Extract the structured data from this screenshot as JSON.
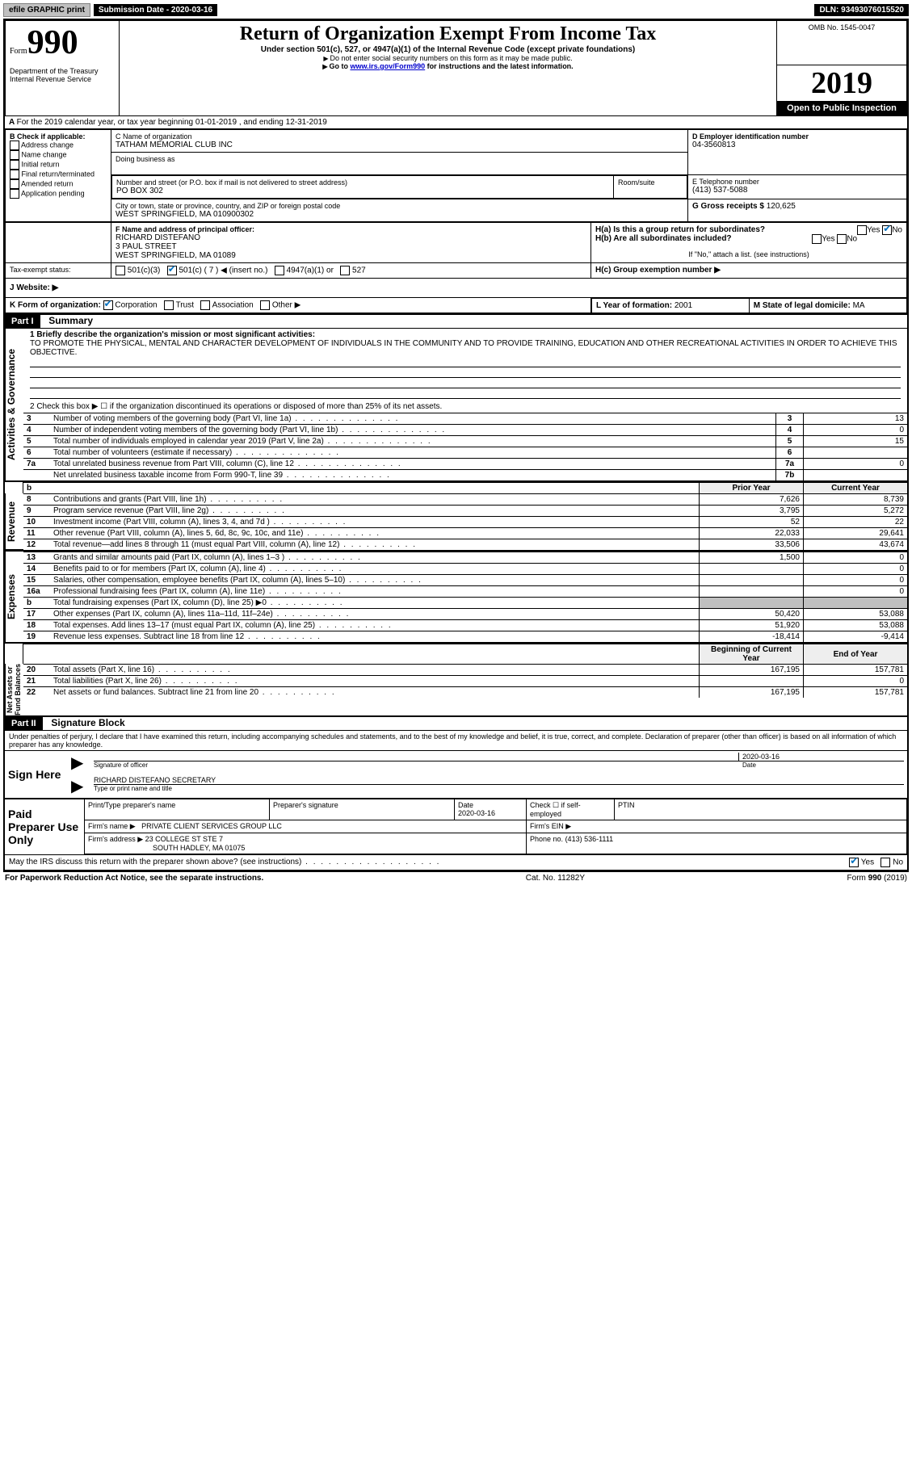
{
  "topbar": {
    "efile": "efile GRAPHIC print",
    "submission_label": "Submission Date - 2020-03-16",
    "dln": "DLN: 93493076015520"
  },
  "header": {
    "form_prefix": "Form",
    "form_number": "990",
    "dept": "Department of the Treasury\nInternal Revenue Service",
    "title": "Return of Organization Exempt From Income Tax",
    "subtitle": "Under section 501(c), 527, or 4947(a)(1) of the Internal Revenue Code (except private foundations)",
    "note1": "Do not enter social security numbers on this form as it may be made public.",
    "note2_prefix": "Go to ",
    "note2_link": "www.irs.gov/Form990",
    "note2_suffix": " for instructions and the latest information.",
    "omb": "OMB No. 1545-0047",
    "year": "2019",
    "open": "Open to Public Inspection"
  },
  "lineA": "For the 2019 calendar year, or tax year beginning 01-01-2019    , and ending 12-31-2019",
  "boxB": {
    "label": "B Check if applicable:",
    "items": [
      "Address change",
      "Name change",
      "Initial return",
      "Final return/terminated",
      "Amended return",
      "Application pending"
    ]
  },
  "boxC": {
    "label": "C Name of organization",
    "name": "TATHAM MEMORIAL CLUB INC",
    "dba_label": "Doing business as",
    "addr_label": "Number and street (or P.O. box if mail is not delivered to street address)",
    "room_label": "Room/suite",
    "addr": "PO BOX 302",
    "city_label": "City or town, state or province, country, and ZIP or foreign postal code",
    "city": "WEST SPRINGFIELD, MA  010900302"
  },
  "boxD": {
    "label": "D Employer identification number",
    "value": "04-3560813"
  },
  "boxE": {
    "label": "E Telephone number",
    "value": "(413) 537-5088"
  },
  "boxG": {
    "label": "G Gross receipts $",
    "value": "120,625"
  },
  "boxF": {
    "label": "F  Name and address of principal officer:",
    "name": "RICHARD DISTEFANO",
    "addr1": "3 PAUL STREET",
    "addr2": "WEST SPRINGFIELD, MA  01089"
  },
  "boxH": {
    "a": "H(a)  Is this a group return for subordinates?",
    "b": "H(b)  Are all subordinates included?",
    "b_note": "If \"No,\" attach a list. (see instructions)",
    "c": "H(c)  Group exemption number ▶"
  },
  "taxexempt": {
    "label": "Tax-exempt status:",
    "c3": "501(c)(3)",
    "c": "501(c) ( 7 ) ◀ (insert no.)",
    "a1": "4947(a)(1) or",
    "527": "527"
  },
  "boxJ": {
    "label": "J   Website: ▶"
  },
  "boxK": {
    "label": "K Form of organization:",
    "corp": "Corporation",
    "trust": "Trust",
    "assoc": "Association",
    "other": "Other ▶"
  },
  "boxL": {
    "label": "L Year of formation:",
    "value": "2001"
  },
  "boxM": {
    "label": "M State of legal domicile:",
    "value": "MA"
  },
  "part1": {
    "title": "Part I",
    "heading": "Summary",
    "line1_label": "1   Briefly describe the organization's mission or most significant activities:",
    "line1_text": "TO PROMOTE THE PHYSICAL, MENTAL AND CHARACTER DEVELOPMENT OF INDIVIDUALS IN THE COMMUNITY AND TO PROVIDE TRAINING, EDUCATION AND OTHER RECREATIONAL ACTIVITIES IN ORDER TO ACHIEVE THIS OBJECTIVE.",
    "line2": "2   Check this box ▶ ☐  if the organization discontinued its operations or disposed of more than 25% of its net assets.",
    "rows_gov": [
      {
        "n": "3",
        "t": "Number of voting members of the governing body (Part VI, line 1a)",
        "box": "3",
        "v": "13"
      },
      {
        "n": "4",
        "t": "Number of independent voting members of the governing body (Part VI, line 1b)",
        "box": "4",
        "v": "0"
      },
      {
        "n": "5",
        "t": "Total number of individuals employed in calendar year 2019 (Part V, line 2a)",
        "box": "5",
        "v": "15"
      },
      {
        "n": "6",
        "t": "Total number of volunteers (estimate if necessary)",
        "box": "6",
        "v": ""
      },
      {
        "n": "7a",
        "t": "Total unrelated business revenue from Part VIII, column (C), line 12",
        "box": "7a",
        "v": "0"
      },
      {
        "n": "",
        "t": "Net unrelated business taxable income from Form 990-T, line 39",
        "box": "7b",
        "v": ""
      }
    ],
    "col_headers": {
      "prior": "Prior Year",
      "current": "Current Year"
    },
    "rows_rev": [
      {
        "n": "8",
        "t": "Contributions and grants (Part VIII, line 1h)",
        "p": "7,626",
        "c": "8,739"
      },
      {
        "n": "9",
        "t": "Program service revenue (Part VIII, line 2g)",
        "p": "3,795",
        "c": "5,272"
      },
      {
        "n": "10",
        "t": "Investment income (Part VIII, column (A), lines 3, 4, and 7d )",
        "p": "52",
        "c": "22"
      },
      {
        "n": "11",
        "t": "Other revenue (Part VIII, column (A), lines 5, 6d, 8c, 9c, 10c, and 11e)",
        "p": "22,033",
        "c": "29,641"
      },
      {
        "n": "12",
        "t": "Total revenue—add lines 8 through 11 (must equal Part VIII, column (A), line 12)",
        "p": "33,506",
        "c": "43,674"
      }
    ],
    "rows_exp": [
      {
        "n": "13",
        "t": "Grants and similar amounts paid (Part IX, column (A), lines 1–3 )",
        "p": "1,500",
        "c": "0"
      },
      {
        "n": "14",
        "t": "Benefits paid to or for members (Part IX, column (A), line 4)",
        "p": "",
        "c": "0"
      },
      {
        "n": "15",
        "t": "Salaries, other compensation, employee benefits (Part IX, column (A), lines 5–10)",
        "p": "",
        "c": "0"
      },
      {
        "n": "16a",
        "t": "Professional fundraising fees (Part IX, column (A), line 11e)",
        "p": "",
        "c": "0"
      },
      {
        "n": "b",
        "t": "Total fundraising expenses (Part IX, column (D), line 25) ▶0",
        "p": "GRAY",
        "c": "GRAY"
      },
      {
        "n": "17",
        "t": "Other expenses (Part IX, column (A), lines 11a–11d, 11f–24e)",
        "p": "50,420",
        "c": "53,088"
      },
      {
        "n": "18",
        "t": "Total expenses. Add lines 13–17 (must equal Part IX, column (A), line 25)",
        "p": "51,920",
        "c": "53,088"
      },
      {
        "n": "19",
        "t": "Revenue less expenses. Subtract line 18 from line 12",
        "p": "-18,414",
        "c": "-9,414"
      }
    ],
    "col_headers2": {
      "begin": "Beginning of Current Year",
      "end": "End of Year"
    },
    "rows_net": [
      {
        "n": "20",
        "t": "Total assets (Part X, line 16)",
        "p": "167,195",
        "c": "157,781"
      },
      {
        "n": "21",
        "t": "Total liabilities (Part X, line 26)",
        "p": "",
        "c": "0"
      },
      {
        "n": "22",
        "t": "Net assets or fund balances. Subtract line 21 from line 20",
        "p": "167,195",
        "c": "157,781"
      }
    ],
    "side_labels": {
      "gov": "Activities & Governance",
      "rev": "Revenue",
      "exp": "Expenses",
      "net": "Net Assets or\nFund Balances"
    }
  },
  "part2": {
    "title": "Part II",
    "heading": "Signature Block",
    "declaration": "Under penalties of perjury, I declare that I have examined this return, including accompanying schedules and statements, and to the best of my knowledge and belief, it is true, correct, and complete. Declaration of preparer (other than officer) is based on all information of which preparer has any knowledge.",
    "sign_here": "Sign Here",
    "sig_officer": "Signature of officer",
    "sig_date": "2020-03-16",
    "sig_date_label": "Date",
    "officer_name": "RICHARD DISTEFANO  SECRETARY",
    "officer_label": "Type or print name and title",
    "paid": "Paid Preparer Use Only",
    "prep_name_label": "Print/Type preparer's name",
    "prep_sig_label": "Preparer's signature",
    "prep_date_label": "Date",
    "prep_date": "2020-03-16",
    "prep_self": "Check ☐ if self-employed",
    "ptin": "PTIN",
    "firm_name_label": "Firm's name    ▶",
    "firm_name": "PRIVATE CLIENT SERVICES GROUP LLC",
    "firm_ein_label": "Firm's EIN ▶",
    "firm_addr_label": "Firm's address ▶",
    "firm_addr1": "23 COLLEGE ST STE 7",
    "firm_addr2": "SOUTH HADLEY, MA  01075",
    "phone_label": "Phone no.",
    "phone": "(413) 536-1111",
    "discuss": "May the IRS discuss this return with the preparer shown above? (see instructions)",
    "paperwork": "For Paperwork Reduction Act Notice, see the separate instructions.",
    "catno": "Cat. No. 11282Y",
    "formfoot": "Form 990 (2019)"
  }
}
